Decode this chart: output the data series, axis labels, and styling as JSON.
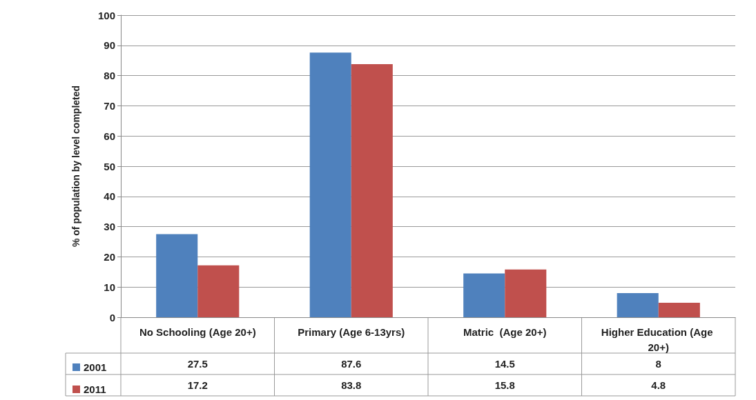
{
  "chart_data": {
    "type": "bar",
    "ylabel": "% of population by level completed",
    "categories": [
      "No Schooling (Age 20+)",
      "Primary (Age 6-13yrs)",
      "Matric  (Age 20+)",
      "Higher Education (Age 20+)"
    ],
    "series": [
      {
        "name": "2001",
        "color": "#4f81bd",
        "values": [
          27.5,
          87.6,
          14.5,
          8
        ]
      },
      {
        "name": "2011",
        "color": "#c0504d",
        "values": [
          17.2,
          83.8,
          15.8,
          4.8
        ]
      }
    ],
    "ylim": [
      0,
      100
    ],
    "yticks": [
      0,
      10,
      20,
      30,
      40,
      50,
      60,
      70,
      80,
      90,
      100
    ],
    "grid": "y",
    "legend": "bottom",
    "data_labels": true
  }
}
